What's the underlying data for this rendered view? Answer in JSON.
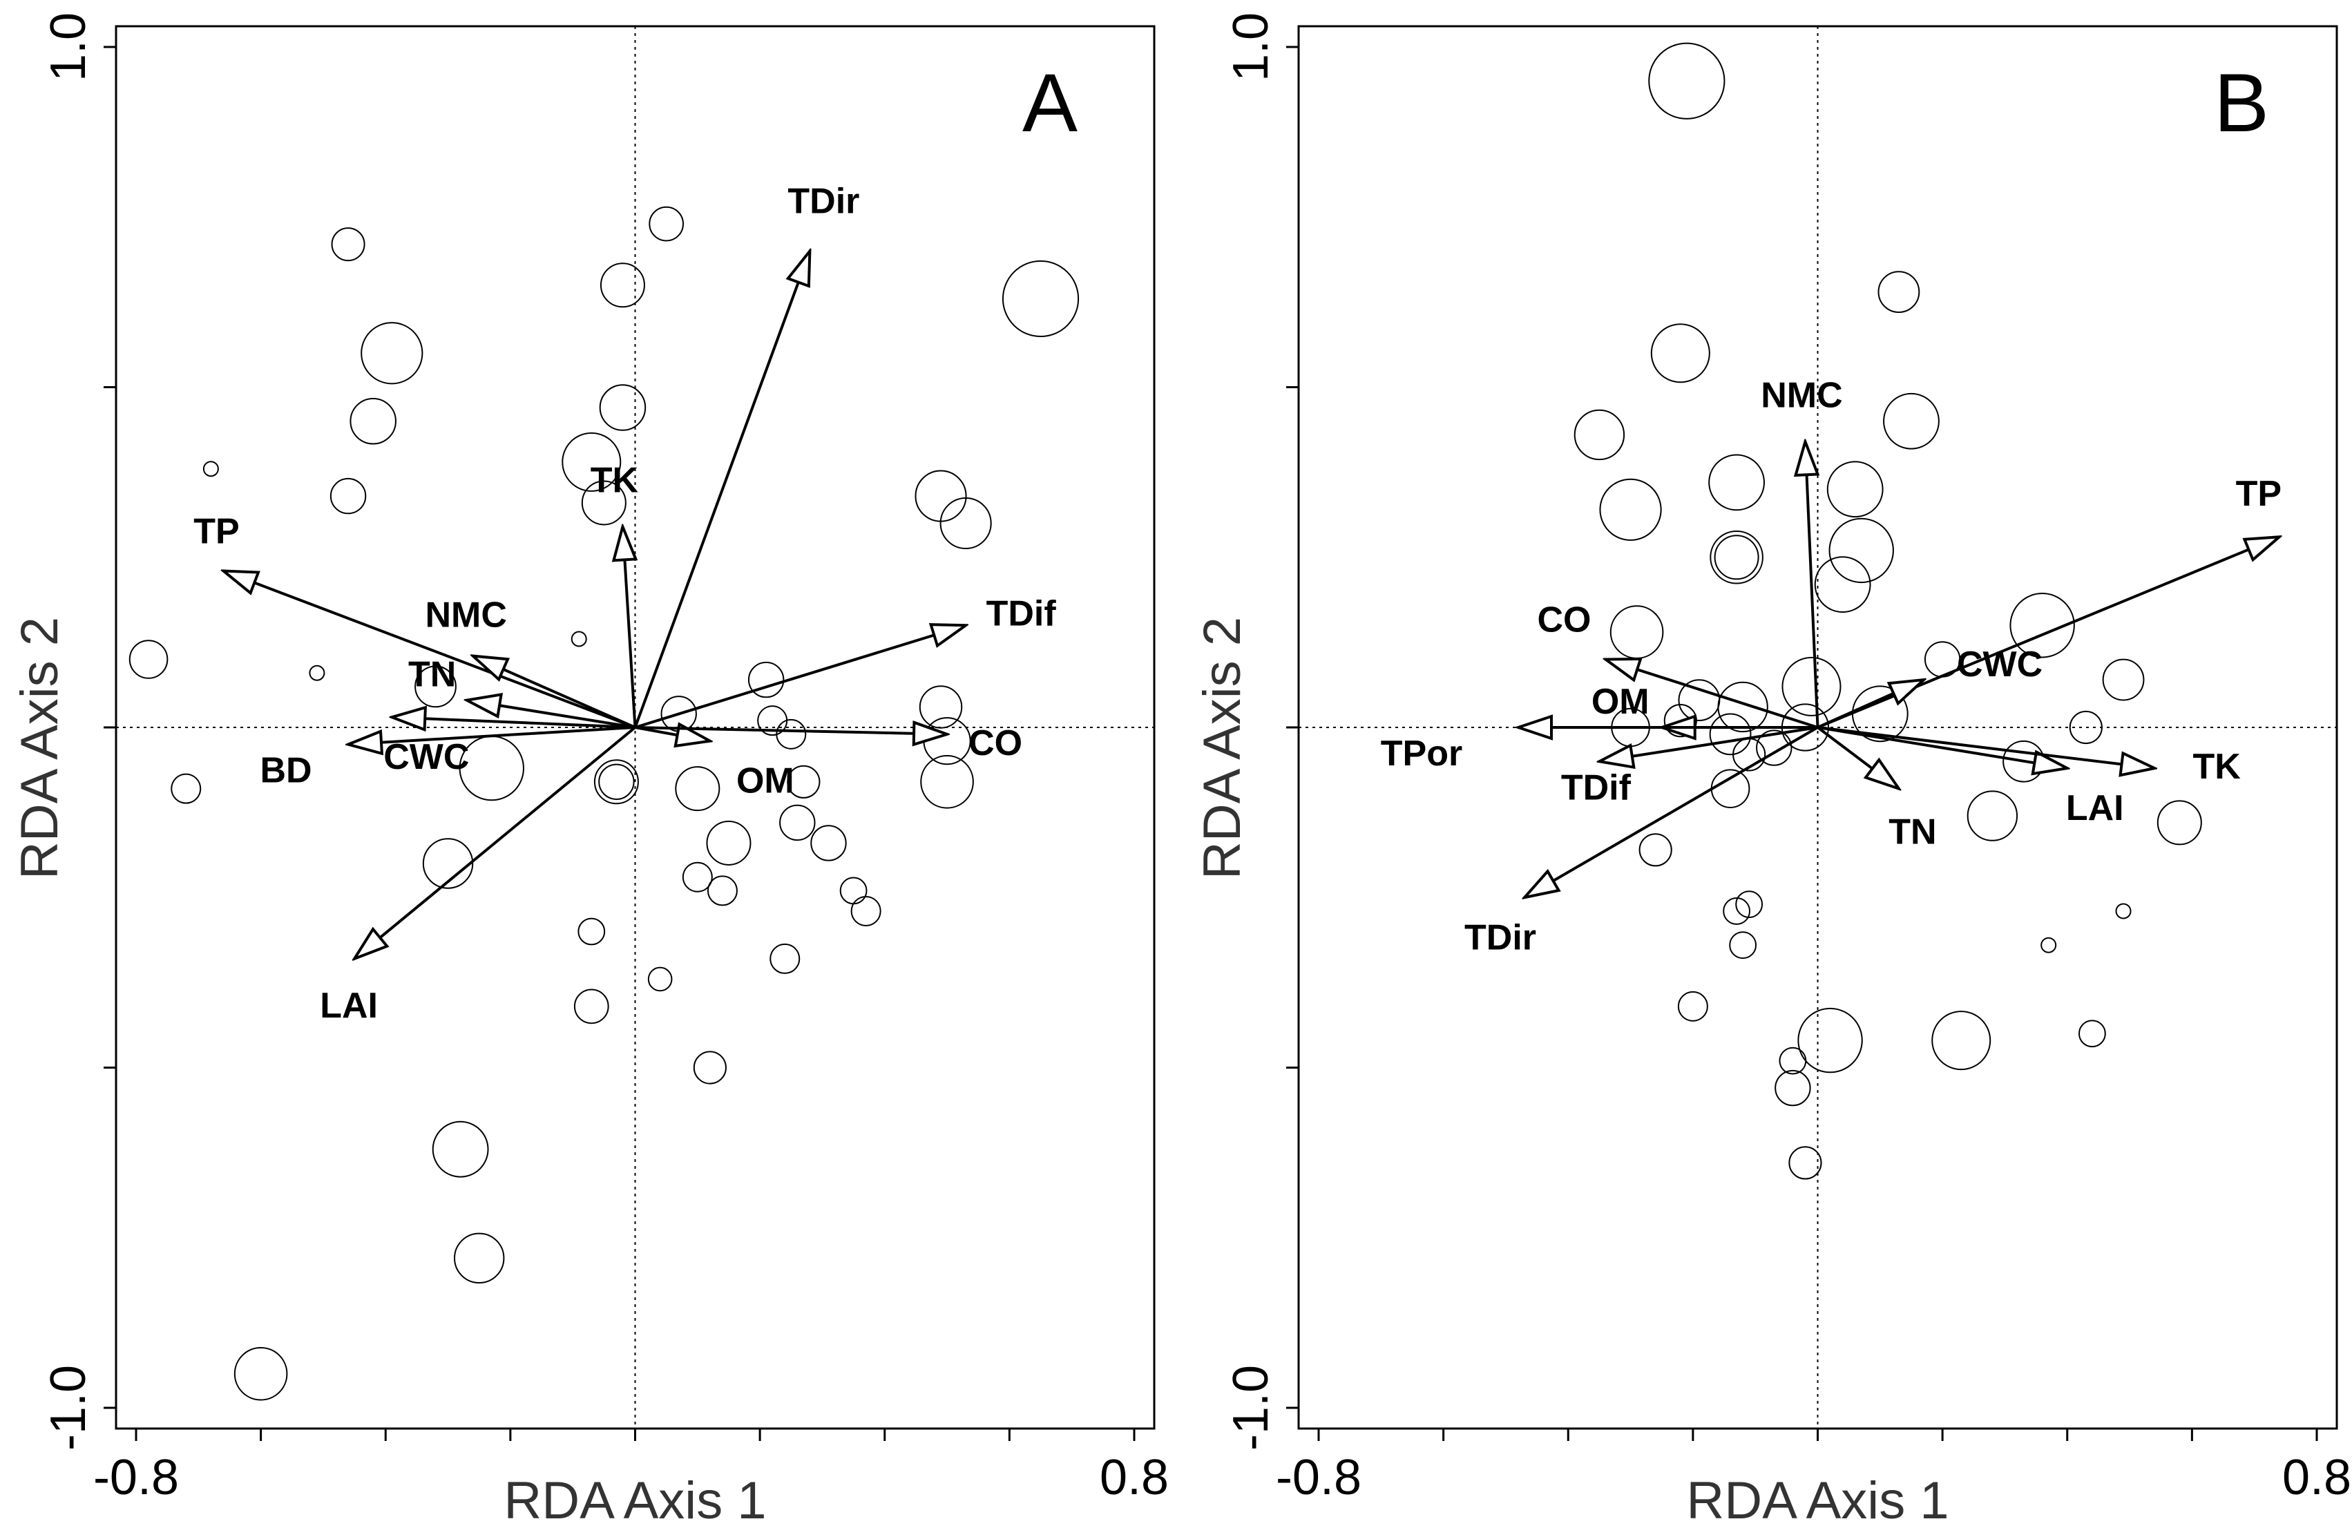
{
  "chart_data": [
    {
      "type": "scatter",
      "panel_label": "A",
      "xlabel": "RDA Axis 1",
      "ylabel": "RDA Axis 2",
      "xlim": [
        -0.8,
        0.8
      ],
      "ylim": [
        -1.0,
        1.0
      ],
      "x_tick_labels": {
        "min": "-0.8",
        "max": "0.8"
      },
      "y_tick_labels": {
        "min": "-1.0",
        "max": "1.0"
      },
      "vectors": [
        {
          "name": "TP",
          "x": -0.66,
          "y": 0.23
        },
        {
          "name": "NMC",
          "x": -0.26,
          "y": 0.105
        },
        {
          "name": "TN",
          "x": -0.27,
          "y": 0.04
        },
        {
          "name": "CWC",
          "x": -0.39,
          "y": 0.015
        },
        {
          "name": "BD",
          "x": -0.46,
          "y": -0.025
        },
        {
          "name": "TK",
          "x": -0.02,
          "y": 0.295
        },
        {
          "name": "TDir",
          "x": 0.28,
          "y": 0.7
        },
        {
          "name": "TDif",
          "x": 0.53,
          "y": 0.15
        },
        {
          "name": "OM",
          "x": 0.12,
          "y": -0.02
        },
        {
          "name": "CO",
          "x": 0.5,
          "y": -0.01
        },
        {
          "name": "LAI",
          "x": -0.45,
          "y": -0.34
        }
      ],
      "points": [
        {
          "x": -0.46,
          "y": 0.71,
          "s": 0.56
        },
        {
          "x": 0.05,
          "y": 0.74,
          "s": 0.58
        },
        {
          "x": -0.02,
          "y": 0.65,
          "s": 0.75
        },
        {
          "x": 0.65,
          "y": 0.63,
          "s": 1.3
        },
        {
          "x": -0.39,
          "y": 0.55,
          "s": 1.05
        },
        {
          "x": -0.42,
          "y": 0.45,
          "s": 0.78
        },
        {
          "x": -0.02,
          "y": 0.47,
          "s": 0.78
        },
        {
          "x": -0.07,
          "y": 0.39,
          "s": 1.0
        },
        {
          "x": -0.05,
          "y": 0.33,
          "s": 0.75
        },
        {
          "x": -0.68,
          "y": 0.38,
          "s": 0.25
        },
        {
          "x": -0.46,
          "y": 0.34,
          "s": 0.6
        },
        {
          "x": 0.49,
          "y": 0.34,
          "s": 0.87
        },
        {
          "x": 0.53,
          "y": 0.3,
          "s": 0.87
        },
        {
          "x": -0.78,
          "y": 0.1,
          "s": 0.65
        },
        {
          "x": -0.51,
          "y": 0.08,
          "s": 0.25
        },
        {
          "x": -0.09,
          "y": 0.13,
          "s": 0.25
        },
        {
          "x": -0.32,
          "y": 0.06,
          "s": 0.7
        },
        {
          "x": 0.07,
          "y": 0.02,
          "s": 0.6
        },
        {
          "x": 0.21,
          "y": 0.07,
          "s": 0.6
        },
        {
          "x": 0.22,
          "y": 0.01,
          "s": 0.5
        },
        {
          "x": 0.25,
          "y": -0.01,
          "s": 0.5
        },
        {
          "x": 0.49,
          "y": 0.03,
          "s": 0.72
        },
        {
          "x": 0.5,
          "y": -0.02,
          "s": 0.8
        },
        {
          "x": 0.5,
          "y": -0.08,
          "s": 0.9
        },
        {
          "x": -0.23,
          "y": -0.06,
          "s": 1.1
        },
        {
          "x": -0.03,
          "y": -0.08,
          "s": 0.75
        },
        {
          "x": -0.03,
          "y": -0.08,
          "s": 0.6
        },
        {
          "x": 0.1,
          "y": -0.09,
          "s": 0.75
        },
        {
          "x": 0.27,
          "y": -0.08,
          "s": 0.55
        },
        {
          "x": -0.72,
          "y": -0.09,
          "s": 0.5
        },
        {
          "x": 0.26,
          "y": -0.14,
          "s": 0.6
        },
        {
          "x": 0.31,
          "y": -0.17,
          "s": 0.6
        },
        {
          "x": 0.15,
          "y": -0.17,
          "s": 0.75
        },
        {
          "x": -0.3,
          "y": -0.2,
          "s": 0.85
        },
        {
          "x": 0.1,
          "y": -0.22,
          "s": 0.5
        },
        {
          "x": 0.14,
          "y": -0.24,
          "s": 0.5
        },
        {
          "x": 0.35,
          "y": -0.24,
          "s": 0.45
        },
        {
          "x": 0.37,
          "y": -0.27,
          "s": 0.5
        },
        {
          "x": -0.07,
          "y": -0.3,
          "s": 0.45
        },
        {
          "x": 0.24,
          "y": -0.34,
          "s": 0.5
        },
        {
          "x": 0.04,
          "y": -0.37,
          "s": 0.4
        },
        {
          "x": -0.07,
          "y": -0.41,
          "s": 0.58
        },
        {
          "x": 0.12,
          "y": -0.5,
          "s": 0.55
        },
        {
          "x": -0.28,
          "y": -0.62,
          "s": 0.95
        },
        {
          "x": -0.25,
          "y": -0.78,
          "s": 0.85
        },
        {
          "x": -0.6,
          "y": -0.95,
          "s": 0.9
        }
      ]
    },
    {
      "type": "scatter",
      "panel_label": "B",
      "xlabel": "RDA Axis 1",
      "ylabel": "RDA Axis 2",
      "xlim": [
        -0.8,
        0.8
      ],
      "ylim": [
        -1.0,
        1.0
      ],
      "x_tick_labels": {
        "min": "-0.8",
        "max": "0.8"
      },
      "y_tick_labels": {
        "min": "-1.0",
        "max": "1.0"
      },
      "vectors": [
        {
          "name": "NMC",
          "x": -0.02,
          "y": 0.42
        },
        {
          "name": "TP",
          "x": 0.74,
          "y": 0.28
        },
        {
          "name": "CO",
          "x": -0.34,
          "y": 0.1
        },
        {
          "name": "CWC",
          "x": 0.17,
          "y": 0.07
        },
        {
          "name": "OM",
          "x": -0.25,
          "y": 0.0
        },
        {
          "name": "TPor",
          "x": -0.48,
          "y": 0.0
        },
        {
          "name": "TDif",
          "x": -0.35,
          "y": -0.05
        },
        {
          "name": "TN",
          "x": 0.13,
          "y": -0.09
        },
        {
          "name": "LAI",
          "x": 0.4,
          "y": -0.06
        },
        {
          "name": "TK",
          "x": 0.54,
          "y": -0.06
        },
        {
          "name": "TDir",
          "x": -0.47,
          "y": -0.25
        }
      ],
      "points": [
        {
          "x": -0.21,
          "y": 0.95,
          "s": 1.3
        },
        {
          "x": 0.13,
          "y": 0.64,
          "s": 0.7
        },
        {
          "x": -0.22,
          "y": 0.55,
          "s": 1.0
        },
        {
          "x": 0.15,
          "y": 0.45,
          "s": 0.95
        },
        {
          "x": -0.35,
          "y": 0.43,
          "s": 0.85
        },
        {
          "x": -0.13,
          "y": 0.36,
          "s": 0.95
        },
        {
          "x": -0.3,
          "y": 0.32,
          "s": 1.05
        },
        {
          "x": 0.06,
          "y": 0.35,
          "s": 0.95
        },
        {
          "x": 0.07,
          "y": 0.26,
          "s": 1.1
        },
        {
          "x": -0.13,
          "y": 0.25,
          "s": 0.9
        },
        {
          "x": -0.13,
          "y": 0.25,
          "s": 0.75
        },
        {
          "x": 0.04,
          "y": 0.21,
          "s": 0.95
        },
        {
          "x": -0.29,
          "y": 0.14,
          "s": 0.9
        },
        {
          "x": 0.36,
          "y": 0.15,
          "s": 1.1
        },
        {
          "x": 0.2,
          "y": 0.1,
          "s": 0.6
        },
        {
          "x": 0.49,
          "y": 0.07,
          "s": 0.7
        },
        {
          "x": -0.01,
          "y": 0.06,
          "s": 1.0
        },
        {
          "x": -0.19,
          "y": 0.04,
          "s": 0.7
        },
        {
          "x": -0.12,
          "y": 0.03,
          "s": 0.85
        },
        {
          "x": 0.1,
          "y": 0.02,
          "s": 0.95
        },
        {
          "x": -0.22,
          "y": 0.01,
          "s": 0.55
        },
        {
          "x": -0.3,
          "y": 0.0,
          "s": 0.65
        },
        {
          "x": -0.02,
          "y": 0.0,
          "s": 0.8
        },
        {
          "x": -0.14,
          "y": -0.01,
          "s": 0.7
        },
        {
          "x": 0.43,
          "y": 0.0,
          "s": 0.55
        },
        {
          "x": -0.11,
          "y": -0.04,
          "s": 0.55
        },
        {
          "x": -0.07,
          "y": -0.03,
          "s": 0.6
        },
        {
          "x": 0.33,
          "y": -0.05,
          "s": 0.7
        },
        {
          "x": -0.14,
          "y": -0.09,
          "s": 0.65
        },
        {
          "x": 0.58,
          "y": -0.14,
          "s": 0.75
        },
        {
          "x": 0.28,
          "y": -0.13,
          "s": 0.85
        },
        {
          "x": -0.26,
          "y": -0.18,
          "s": 0.55
        },
        {
          "x": -0.13,
          "y": -0.27,
          "s": 0.45
        },
        {
          "x": -0.11,
          "y": -0.26,
          "s": 0.45
        },
        {
          "x": 0.49,
          "y": -0.27,
          "s": 0.25
        },
        {
          "x": 0.37,
          "y": -0.32,
          "s": 0.25
        },
        {
          "x": -0.12,
          "y": -0.32,
          "s": 0.45
        },
        {
          "x": -0.2,
          "y": -0.41,
          "s": 0.5
        },
        {
          "x": 0.44,
          "y": -0.45,
          "s": 0.45
        },
        {
          "x": 0.02,
          "y": -0.46,
          "s": 1.1
        },
        {
          "x": 0.23,
          "y": -0.46,
          "s": 1.0
        },
        {
          "x": -0.04,
          "y": -0.49,
          "s": 0.45
        },
        {
          "x": -0.04,
          "y": -0.53,
          "s": 0.6
        },
        {
          "x": -0.02,
          "y": -0.64,
          "s": 0.55
        }
      ]
    }
  ]
}
